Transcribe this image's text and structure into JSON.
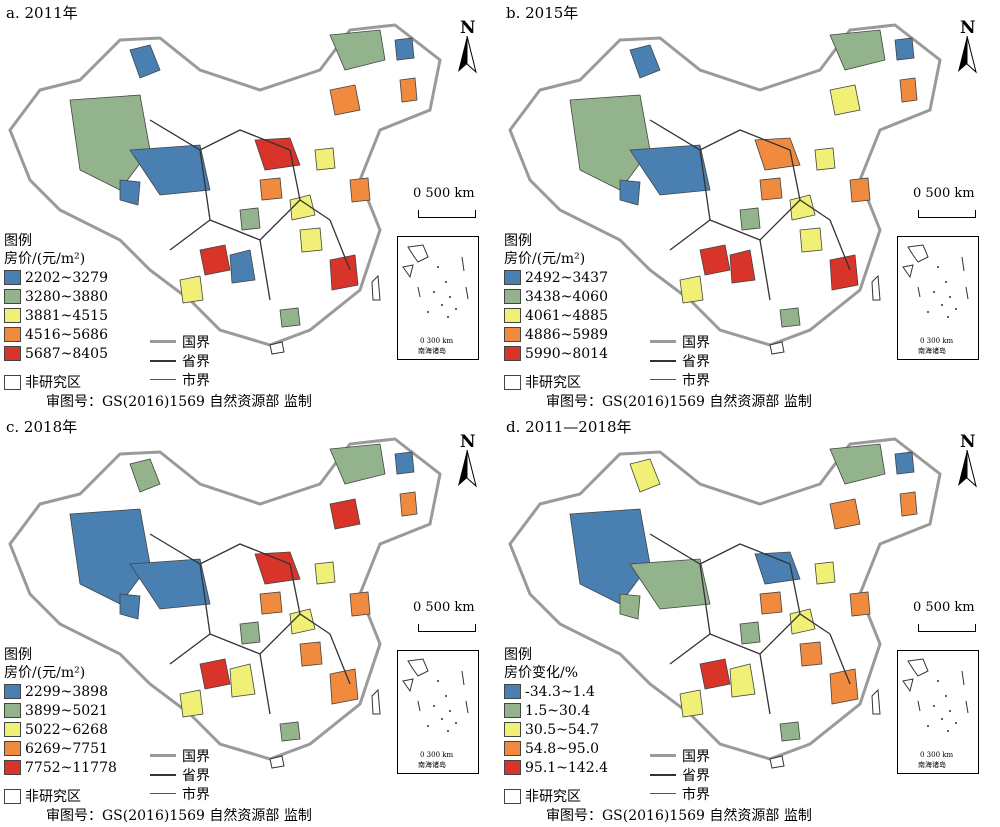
{
  "colors": {
    "c1": "#4a7fb2",
    "c2": "#93b38c",
    "c3": "#f0ef76",
    "c4": "#f08a3e",
    "c5": "#d8342a",
    "non": "#ffffff",
    "national_border": "#9a9a9a",
    "province_border": "#333333",
    "city_border": "#555555"
  },
  "common": {
    "north_label": "N",
    "scale_label": "0    500 km",
    "inset_scale": "0  300 km",
    "inset_caption": "南海诸岛",
    "legend_title": "图例",
    "line_national": "国界",
    "line_province": "省界",
    "line_city": "市界",
    "non_study": "非研究区",
    "review_no": "审图号：GS(2016)1569   自然资源部  监制"
  },
  "panels": [
    {
      "title": "a. 2011年",
      "legend_subtitle": "房价/(元/m²)",
      "classes": [
        "2202~3279",
        "3280~3880",
        "3881~4515",
        "4516~5686",
        "5687~8405"
      ]
    },
    {
      "title": "b. 2015年",
      "legend_subtitle": "房价/(元/m²)",
      "classes": [
        "2492~3437",
        "3438~4060",
        "4061~4885",
        "4886~5989",
        "5990~8014"
      ]
    },
    {
      "title": "c. 2018年",
      "legend_subtitle": "房价/(元/m²)",
      "classes": [
        "2299~3898",
        "3899~5021",
        "5022~6268",
        "6269~7751",
        "7752~11778"
      ]
    },
    {
      "title": "d. 2011—2018年",
      "legend_subtitle": "房价变化/%",
      "classes": [
        "-34.3~1.4",
        "1.5~30.4",
        "30.5~54.7",
        "54.8~95.0",
        "95.1~142.4"
      ]
    }
  ]
}
